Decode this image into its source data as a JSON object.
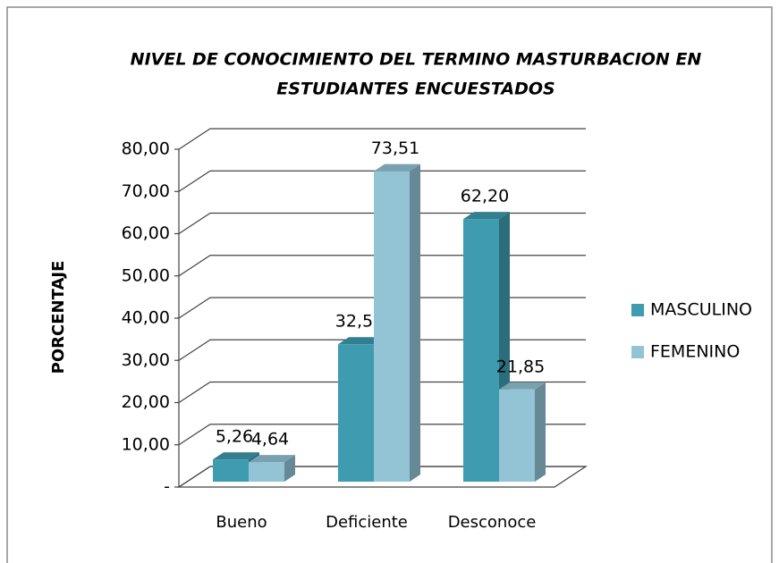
{
  "chart_data": {
    "type": "bar3d",
    "title": [
      "NIVEL DE CONOCIMIENTO DEL TERMINO MASTURBACION EN",
      "ESTUDIANTES ENCUESTADOS"
    ],
    "y_label": "PORCENTAJE",
    "categories": [
      "Bueno",
      "Deficiente",
      "Desconoce"
    ],
    "series": [
      {
        "name": "MASCULINO",
        "color": "#3e9bb0",
        "values": [
          5.26,
          32.54,
          62.2
        ],
        "value_labels": [
          "5,26",
          "32,54",
          "62,20"
        ]
      },
      {
        "name": "FEMENINO",
        "color": "#93c4d6",
        "values": [
          4.64,
          73.51,
          21.85
        ],
        "value_labels": [
          "4,64",
          "73,51",
          "21,85"
        ]
      }
    ],
    "ylim": [
      0,
      80
    ],
    "yticks": [
      {
        "value": 0,
        "label": "-"
      },
      {
        "value": 10,
        "label": "10,00"
      },
      {
        "value": 20,
        "label": "20,00"
      },
      {
        "value": 30,
        "label": "30,00"
      },
      {
        "value": 40,
        "label": "40,00"
      },
      {
        "value": 50,
        "label": "50,00"
      },
      {
        "value": 60,
        "label": "60,00"
      },
      {
        "value": 70,
        "label": "70,00"
      },
      {
        "value": 80,
        "label": "80,00"
      }
    ],
    "grid": true,
    "legend": "right"
  }
}
